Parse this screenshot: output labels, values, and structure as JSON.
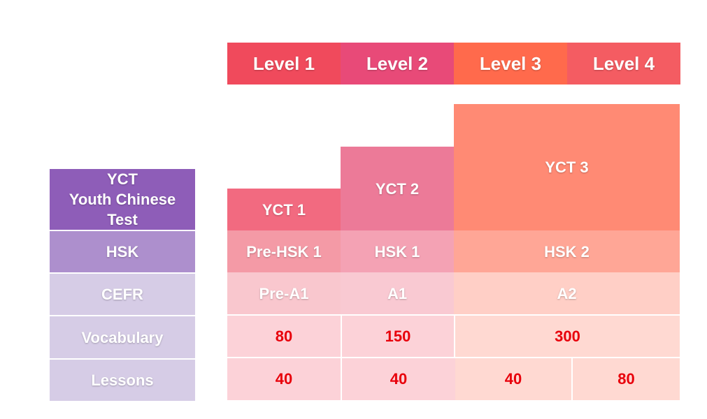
{
  "levels": [
    "Level 1",
    "Level 2",
    "Level 3",
    "Level 4"
  ],
  "row_labels": {
    "yct": [
      "YCT",
      "Youth Chinese",
      "Test"
    ],
    "hsk": "HSK",
    "cefr": "CEFR",
    "vocabulary": "Vocabulary",
    "lessons": "Lessons"
  },
  "yct_levels": [
    "YCT 1",
    "YCT 2",
    "YCT 3"
  ],
  "hsk_levels": [
    "Pre-HSK 1",
    "HSK 1",
    "HSK 2"
  ],
  "cefr_levels": [
    "Pre-A1",
    "A1",
    "A2"
  ],
  "vocabulary": [
    "80",
    "150",
    "300"
  ],
  "lessons": [
    "40",
    "40",
    "40",
    "80"
  ],
  "colors": {
    "level_1": "#f04a5c",
    "level_2": "#e84a78",
    "level_3": "#ff6a4c",
    "level_4": "#f45c62",
    "label_yct": "#8e5db8",
    "label_hsk": "#ad8fcd",
    "label_light": "#d6cce6",
    "value_red": "#e8000b"
  }
}
